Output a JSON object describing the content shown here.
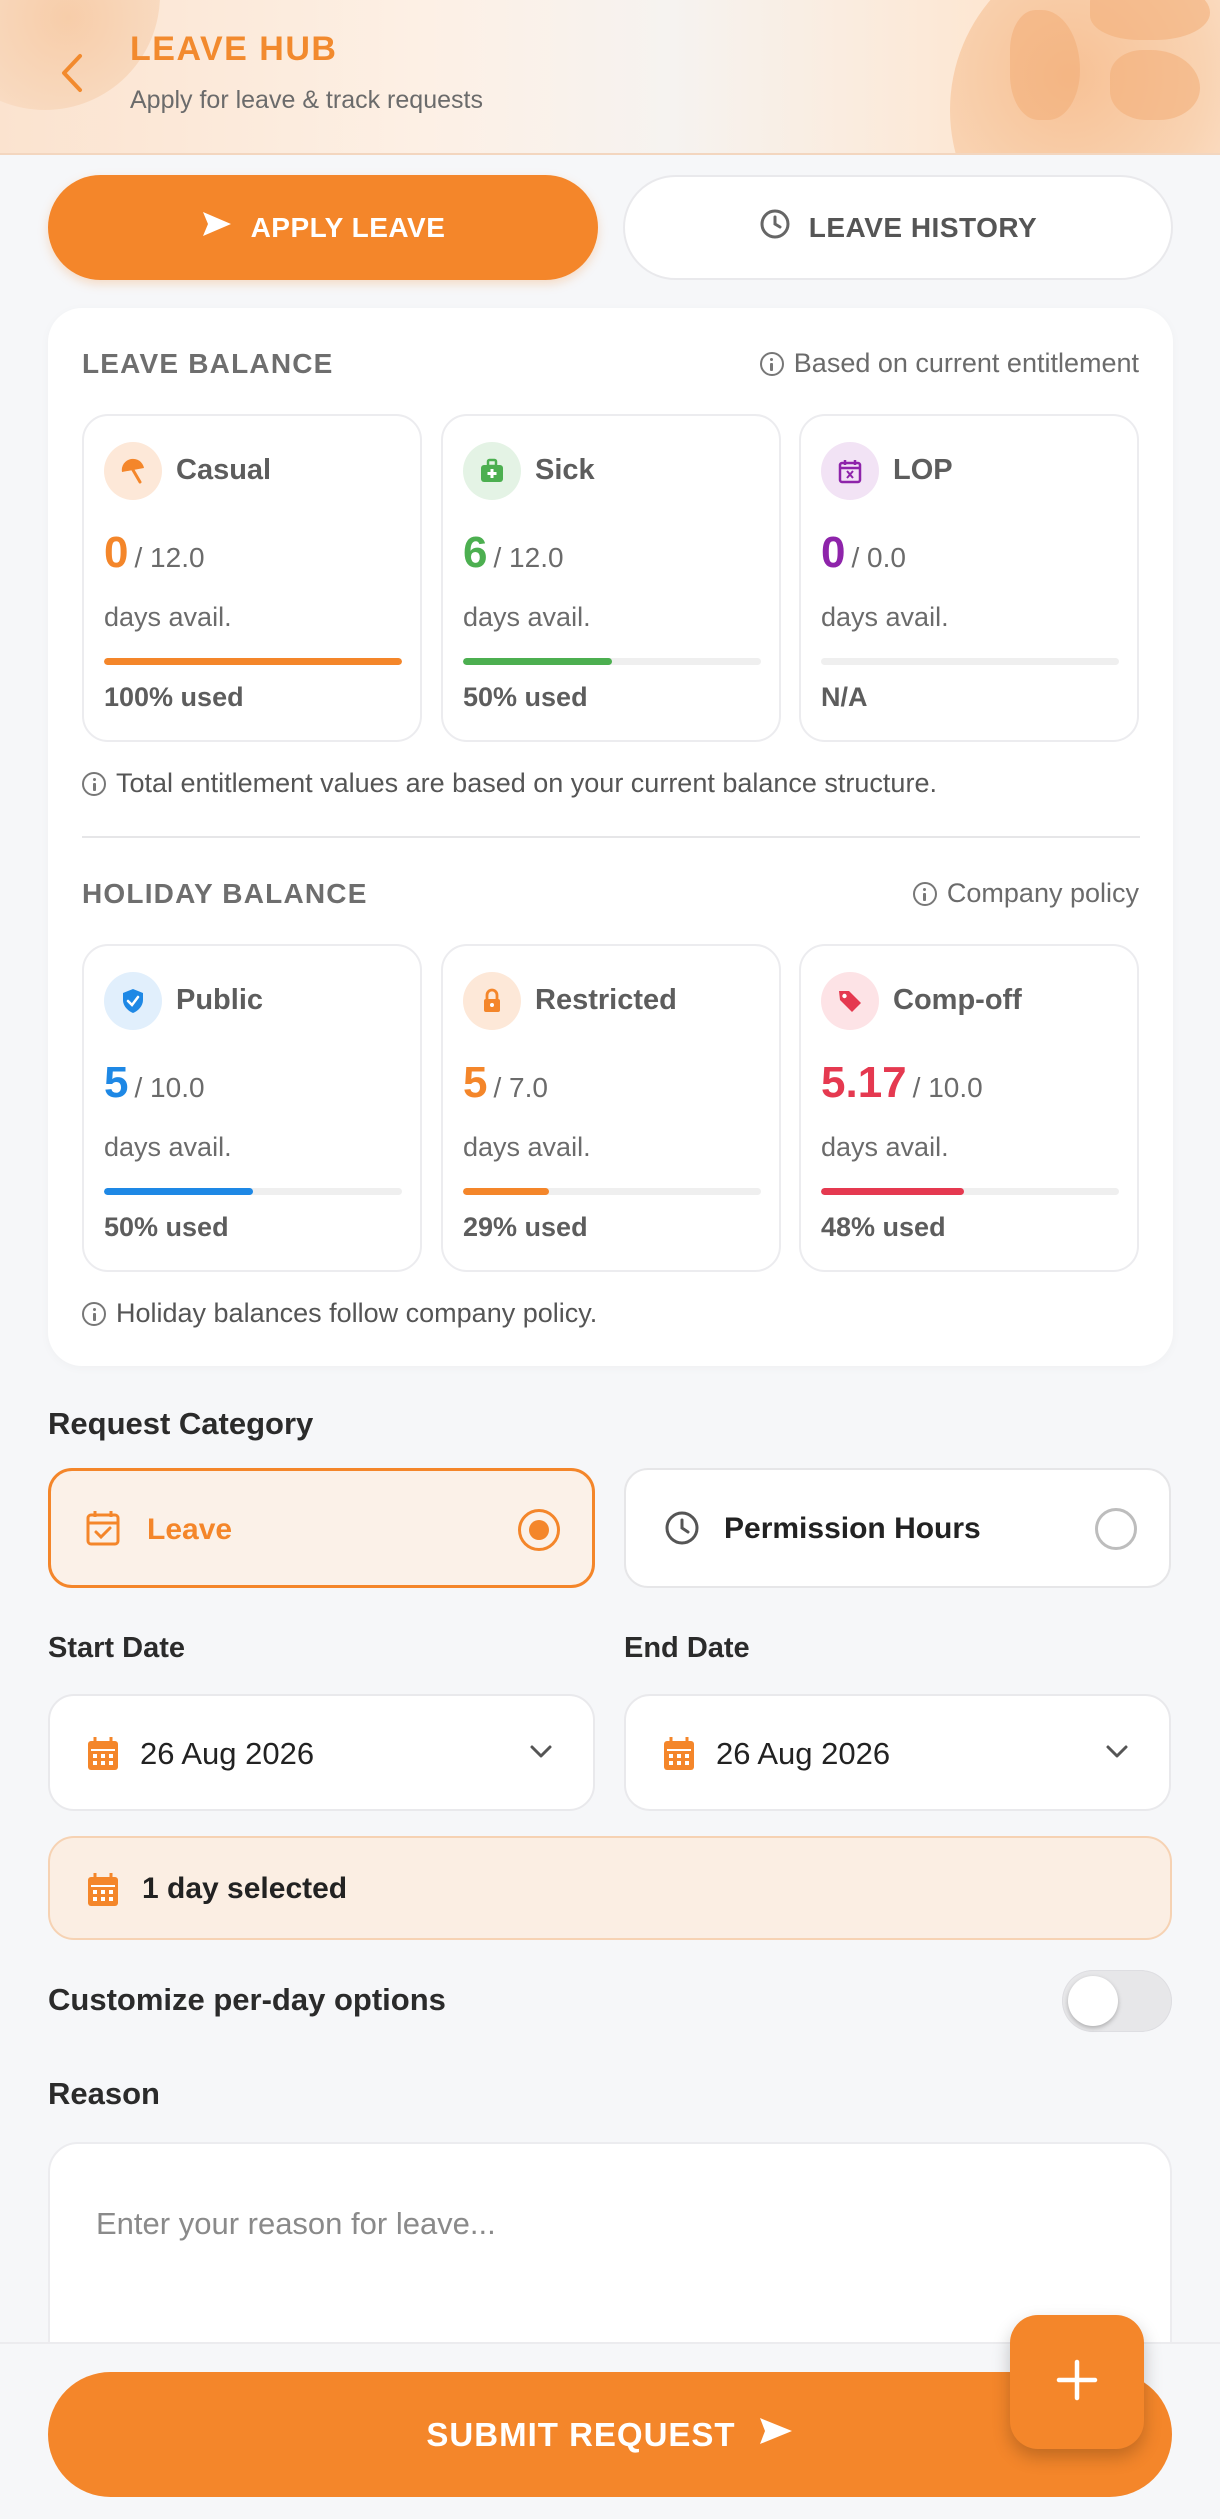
{
  "header": {
    "title": "LEAVE HUB",
    "subtitle": "Apply for leave & track requests"
  },
  "tabs": {
    "apply_label": "APPLY LEAVE",
    "history_label": "LEAVE HISTORY"
  },
  "leave_balance": {
    "title": "LEAVE BALANCE",
    "note": "Based on current entitlement",
    "footnote": "Total entitlement values are based on your current balance structure.",
    "items": [
      {
        "name": "Casual",
        "available": "0",
        "total": "/ 12.0",
        "sub": "days avail.",
        "used_label": "100% used",
        "used_fraction": 1.0,
        "color": "#f4862a",
        "icon": "umbrella-icon"
      },
      {
        "name": "Sick",
        "available": "6",
        "total": "/ 12.0",
        "sub": "days avail.",
        "used_label": "50% used",
        "used_fraction": 0.5,
        "color": "#4caf50",
        "icon": "medical-kit-icon"
      },
      {
        "name": "LOP",
        "available": "0",
        "total": "/ 0.0",
        "sub": "days avail.",
        "used_label": "N/A",
        "used_fraction": 0.0,
        "color": "#8e24aa",
        "icon": "calendar-x-icon"
      }
    ]
  },
  "holiday_balance": {
    "title": "HOLIDAY BALANCE",
    "note": "Company policy",
    "footnote": "Holiday balances follow company policy.",
    "items": [
      {
        "name": "Public",
        "available": "5",
        "total": "/ 10.0",
        "sub": "days avail.",
        "used_label": "50% used",
        "used_fraction": 0.5,
        "color": "#1e88e5",
        "icon": "shield-check-icon"
      },
      {
        "name": "Restricted",
        "available": "5",
        "total": "/ 7.0",
        "sub": "days avail.",
        "used_label": "29% used",
        "used_fraction": 0.29,
        "color": "#f4862a",
        "icon": "lock-icon"
      },
      {
        "name": "Comp-off",
        "available": "5.17",
        "total": "/ 10.0",
        "sub": "days avail.",
        "used_label": "48% used",
        "used_fraction": 0.48,
        "color": "#e53950",
        "icon": "tag-icon"
      }
    ]
  },
  "request": {
    "category_label": "Request Category",
    "leave_option": "Leave",
    "permission_option": "Permission Hours",
    "selected": "Leave",
    "start_label": "Start Date",
    "start_value": "26 Aug 2026",
    "end_label": "End Date",
    "end_value": "26 Aug 2026",
    "selected_summary": "1 day selected",
    "customize_label": "Customize per-day options",
    "customize_enabled": false,
    "reason_label": "Reason",
    "reason_placeholder": "Enter your reason for leave...",
    "submit_label": "SUBMIT REQUEST"
  },
  "colors": {
    "accent": "#f4862a",
    "accent_light": "#fbf1e8"
  }
}
